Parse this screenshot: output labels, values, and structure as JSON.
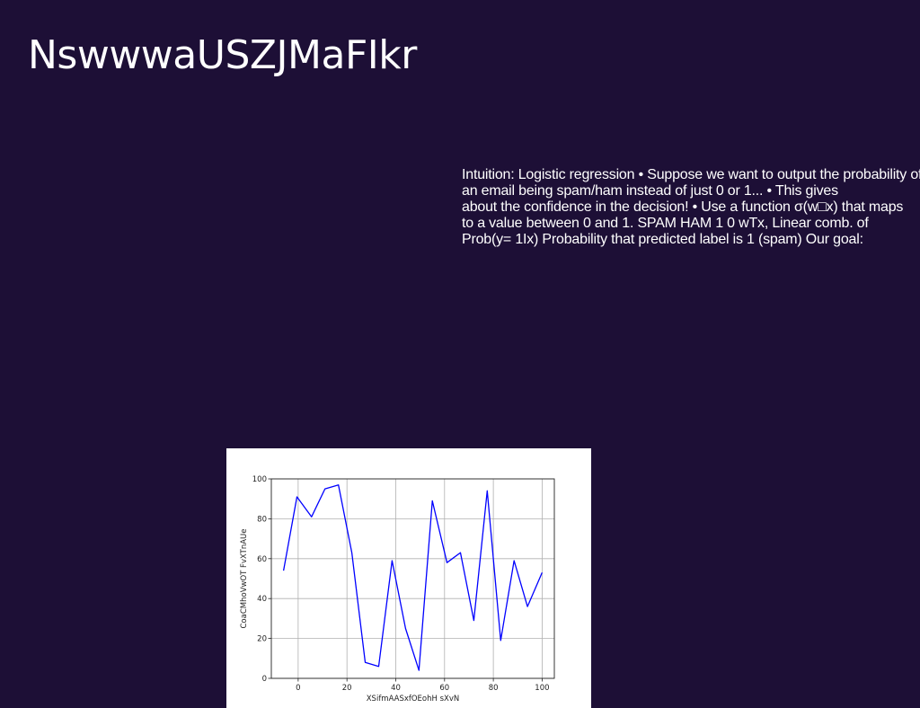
{
  "slide": {
    "title": "NswwwaUSZJMaFIkr",
    "body_lines": [
      "Intuition: Logistic regression • Suppose we want to output the probability of",
      "an email being spam/ham instead of just 0 or 1... • This gives",
      "about the confidence in the decision! • Use a function σ(w□x) that maps",
      "to a value between 0 and 1. SPAM HAM 1 0 wTx, Linear comb. of",
      "Prob(y= 1Ix) Probability that predicted label is 1 (spam) Our goal:"
    ]
  },
  "colors": {
    "background": "#1d0f36",
    "text": "#ffffff",
    "line": "#0000ff",
    "grid": "#b0b0b0"
  },
  "chart_data": {
    "type": "line",
    "title": "",
    "xlabel": "XSifmAASxfOEohH sXvN",
    "ylabel": "CoaCMhoVwOT FvXTnAUe",
    "xlim": [
      -11,
      105
    ],
    "ylim": [
      0,
      100
    ],
    "xticks": [
      0,
      20,
      40,
      60,
      80,
      100
    ],
    "yticks": [
      0,
      20,
      40,
      60,
      80,
      100
    ],
    "grid": true,
    "series": [
      {
        "color": "#0000ff",
        "x": [
          -6,
          -0.5,
          5.5,
          11,
          16.5,
          22,
          27.5,
          33,
          38.5,
          44,
          49.5,
          55,
          61,
          66.5,
          72,
          77.5,
          83,
          88.5,
          94,
          100
        ],
        "y": [
          54,
          91,
          81,
          95,
          97,
          63,
          8,
          6,
          59,
          25,
          4,
          89,
          58,
          63,
          29,
          94,
          19,
          59,
          36,
          53
        ]
      }
    ]
  }
}
